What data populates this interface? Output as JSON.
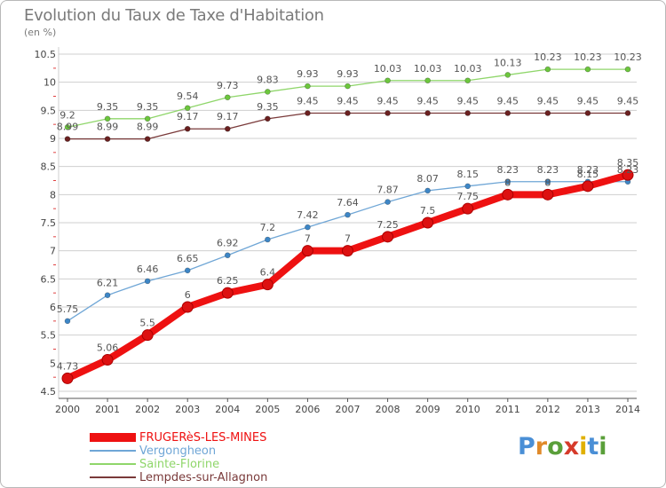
{
  "title": "Evolution du Taux de Taxe d'Habitation",
  "unit": "(en %)",
  "logo": {
    "text": "Proxiti",
    "letter_colors": [
      "#4a8fd6",
      "#e08a2a",
      "#5a9f3a",
      "#d63a2a",
      "#e0b000",
      "#4a8fd6",
      "#5a9f3a"
    ]
  },
  "colors": {
    "grid": "#cfcfcf",
    "axis": "#555555",
    "tick_marks": "#e04040",
    "label_text": "#444444",
    "value_text": "#555555"
  },
  "chart_data": {
    "type": "line",
    "title": "Evolution du Taux de Taxe d'Habitation",
    "ylabel": "(en %)",
    "xlabel": "",
    "x": [
      "2000",
      "2001",
      "2002",
      "2003",
      "2004",
      "2005",
      "2006",
      "2007",
      "2008",
      "2009",
      "2010",
      "2011",
      "2012",
      "2013",
      "2014"
    ],
    "ylim": [
      4.5,
      10.5
    ],
    "yticks": [
      "4.5",
      "5",
      "5.5",
      "6",
      "6.5",
      "7",
      "7.5",
      "8",
      "8.5",
      "9",
      "9.5",
      "10",
      "10.5"
    ],
    "grid": true,
    "legend_position": "bottom-left",
    "series": [
      {
        "name": "FRUGERèS-LES-MINES",
        "color": "#ee1111",
        "marker": "#dd1111",
        "thick": true,
        "values": [
          4.73,
          5.06,
          5.5,
          6,
          6.25,
          6.4,
          7,
          7,
          7.25,
          7.5,
          7.75,
          8,
          8,
          8.15,
          8.35
        ],
        "labels": [
          "4.73",
          "5.06",
          "5.5",
          "6",
          "6.25",
          "6.4",
          "7",
          "7",
          "7.25",
          "7.5",
          "7.75",
          "8",
          "8",
          "8.15",
          "8.35"
        ]
      },
      {
        "name": "Vergongheon",
        "color": "#6fa6d6",
        "marker": "#3d86c6",
        "thick": false,
        "values": [
          5.75,
          6.21,
          6.46,
          6.65,
          6.92,
          7.2,
          7.42,
          7.64,
          7.87,
          8.07,
          8.15,
          8.23,
          8.23,
          8.23,
          8.23
        ],
        "labels": [
          "5.75",
          "6.21",
          "6.46",
          "6.65",
          "6.92",
          "7.2",
          "7.42",
          "7.64",
          "7.87",
          "8.07",
          "8.15",
          "8.23",
          "8.23",
          "8.23",
          "8.23"
        ]
      },
      {
        "name": "Sainte-Florine",
        "color": "#8fd66a",
        "marker": "#6cc63d",
        "thick": false,
        "values": [
          9.2,
          9.35,
          9.35,
          9.54,
          9.73,
          9.83,
          9.93,
          9.93,
          10.03,
          10.03,
          10.03,
          10.13,
          10.23,
          10.23,
          10.23
        ],
        "labels": [
          "9.2",
          "9.35",
          "9.35",
          "9.54",
          "9.73",
          "9.83",
          "9.93",
          "9.93",
          "10.03",
          "10.03",
          "10.03",
          "10.13",
          "10.23",
          "10.23",
          "10.23"
        ]
      },
      {
        "name": "Lempdes-sur-Allagnon",
        "color": "#7a3a3a",
        "marker": "#6a2020",
        "thick": false,
        "values": [
          8.99,
          8.99,
          8.99,
          9.17,
          9.17,
          9.35,
          9.45,
          9.45,
          9.45,
          9.45,
          9.45,
          9.45,
          9.45,
          9.45,
          9.45
        ],
        "labels": [
          "8.99",
          "8.99",
          "8.99",
          "9.17",
          "9.17",
          "9.35",
          "9.45",
          "9.45",
          "9.45",
          "9.45",
          "9.45",
          "9.45",
          "9.45",
          "9.45",
          "9.45"
        ]
      }
    ]
  }
}
